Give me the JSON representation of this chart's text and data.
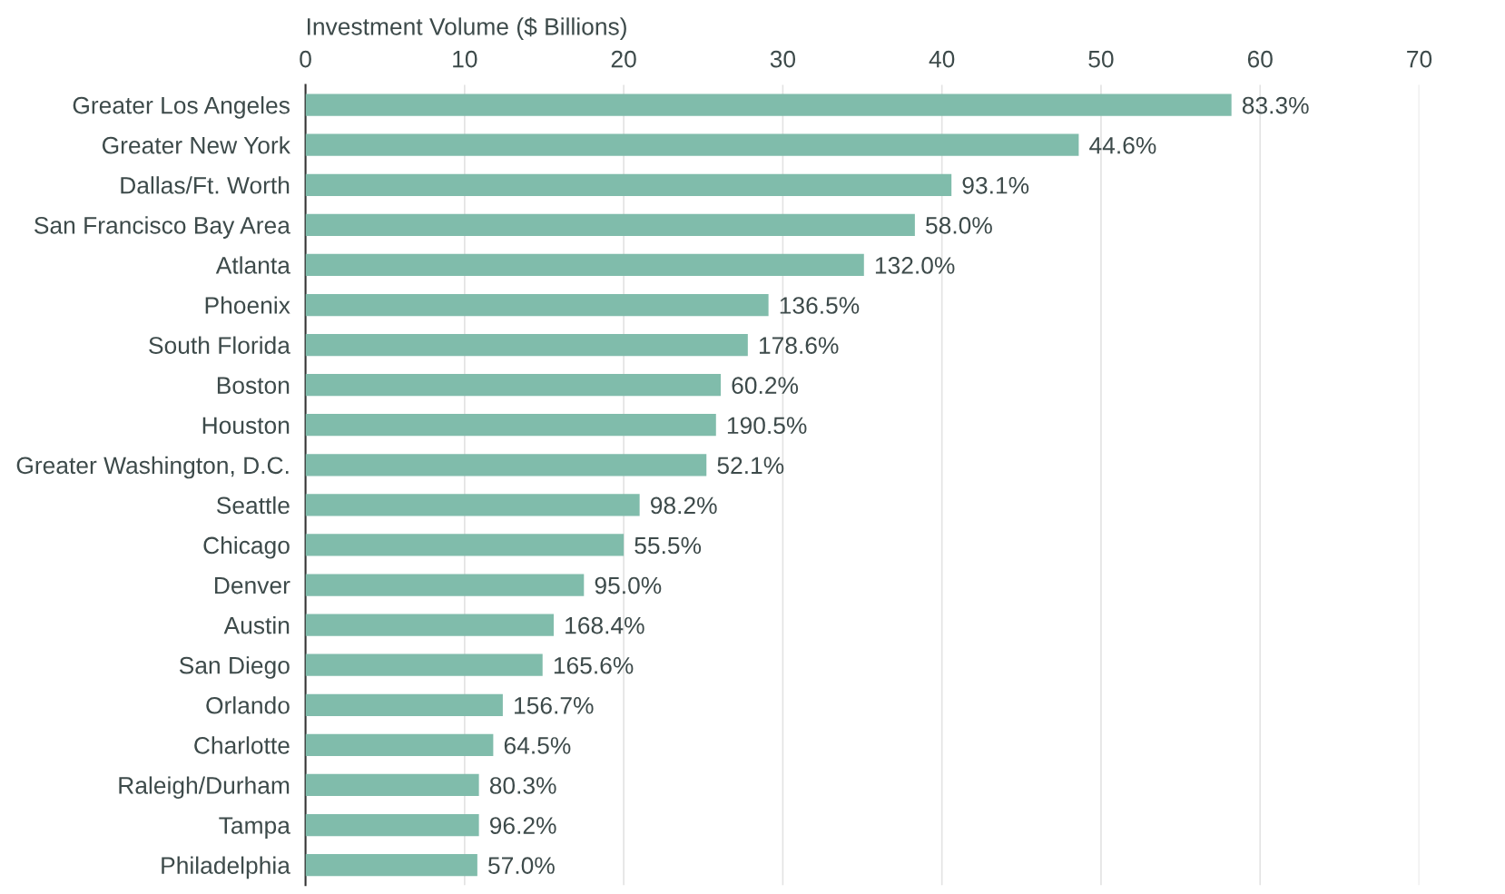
{
  "chart_data": {
    "type": "bar",
    "orientation": "horizontal",
    "xlabel": "Investment Volume ($ Billions)",
    "categories": [
      "Greater Los Angeles",
      "Greater New York",
      "Dallas/Ft. Worth",
      "San Francisco Bay Area",
      "Atlanta",
      "Phoenix",
      "South Florida",
      "Boston",
      "Houston",
      "Greater Washington, D.C.",
      "Seattle",
      "Chicago",
      "Denver",
      "Austin",
      "San Diego",
      "Orlando",
      "Charlotte",
      "Raleigh/Durham",
      "Tampa",
      "Philadelphia"
    ],
    "values": [
      58.2,
      48.6,
      40.6,
      38.3,
      35.1,
      29.1,
      27.8,
      26.1,
      25.8,
      25.2,
      21.0,
      20.0,
      17.5,
      15.6,
      14.9,
      12.4,
      11.8,
      10.9,
      10.9,
      10.8
    ],
    "annotations": [
      {
        "text": "83.3%",
        "x": 58.2,
        "y": "Greater Los Angeles"
      },
      {
        "text": "44.6%",
        "x": 48.6,
        "y": "Greater New York"
      },
      {
        "text": "93.1%",
        "x": 40.6,
        "y": "Dallas/Ft. Worth"
      },
      {
        "text": "58.0%",
        "x": 38.3,
        "y": "San Francisco Bay Area"
      },
      {
        "text": "132.0%",
        "x": 35.1,
        "y": "Atlanta"
      },
      {
        "text": "136.5%",
        "x": 29.1,
        "y": "Phoenix"
      },
      {
        "text": "178.6%",
        "x": 27.8,
        "y": "South Florida"
      },
      {
        "text": "60.2%",
        "x": 26.1,
        "y": "Boston"
      },
      {
        "text": "190.5%",
        "x": 25.8,
        "y": "Houston"
      },
      {
        "text": "52.1%",
        "x": 25.2,
        "y": "Greater Washington, D.C."
      },
      {
        "text": "98.2%",
        "x": 21.0,
        "y": "Seattle"
      },
      {
        "text": "55.5%",
        "x": 20.0,
        "y": "Chicago"
      },
      {
        "text": "95.0%",
        "x": 17.5,
        "y": "Denver"
      },
      {
        "text": "168.4%",
        "x": 15.6,
        "y": "Austin"
      },
      {
        "text": "165.6%",
        "x": 14.9,
        "y": "San Diego"
      },
      {
        "text": "156.7%",
        "x": 12.4,
        "y": "Orlando"
      },
      {
        "text": "64.5%",
        "x": 11.8,
        "y": "Charlotte"
      },
      {
        "text": "80.3%",
        "x": 10.9,
        "y": "Raleigh/Durham"
      },
      {
        "text": "96.2%",
        "x": 10.9,
        "y": "Tampa"
      },
      {
        "text": "57.0%",
        "x": 10.8,
        "y": "Philadelphia"
      }
    ],
    "color": "#80bcab",
    "xlim": [
      0,
      70
    ],
    "xticks": [
      0,
      10,
      20,
      30,
      40,
      50,
      60,
      70
    ],
    "grid": "x",
    "legend": false
  }
}
